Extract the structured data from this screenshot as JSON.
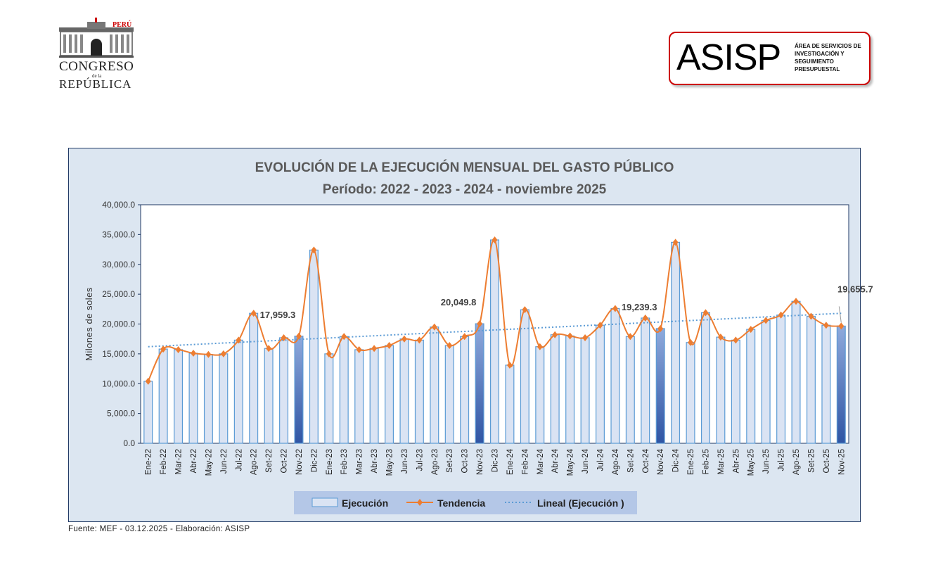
{
  "header": {
    "congreso": {
      "peru": "PERÚ",
      "name": "CONGRESO",
      "de_la": "de la",
      "republica": "REPÚBLICA"
    },
    "asisp": {
      "acronym": "ASISP",
      "description": "ÁREA DE SERVICIOS DE INVESTIGACIÓN Y SEGUIMIENTO PRESUPUESTAL"
    }
  },
  "source": "Fuente: MEF - 03.12.2025 - Elaboración: ASISP",
  "colors": {
    "bar_fill": "#dae3f3",
    "bar_stroke": "#5b9bd5",
    "highlight": "#4472c4",
    "line": "#ed7d31",
    "trend": "#5b9bd5",
    "panel": "#dce6f1"
  },
  "chart_data": {
    "type": "bar",
    "title": "EVOLUCIÓN DE LA EJECUCIÓN MENSUAL DEL GASTO PÚBLICO",
    "subtitle": "Período: 2022 - 2023 - 2024 - noviembre 2025",
    "ylabel": "Milones de soles",
    "xlabel": "",
    "ylim": [
      0,
      40000
    ],
    "yticks": [
      "0.0",
      "5,000.0",
      "10,000.0",
      "15,000.0",
      "20,000.0",
      "25,000.0",
      "30,000.0",
      "35,000.0",
      "40,000.0"
    ],
    "categories": [
      "Ene-22",
      "Feb-22",
      "Mar-22",
      "Abr-22",
      "May-22",
      "Jun-22",
      "Jul-22",
      "Ago-22",
      "Set-22",
      "Oct-22",
      "Nov-22",
      "Dic-22",
      "Ene-23",
      "Feb-23",
      "Mar-23",
      "Abr-23",
      "May-23",
      "Jun-23",
      "Jul-23",
      "Ago-23",
      "Set-23",
      "Oct-23",
      "Nov-23",
      "Dic-23",
      "Ene-24",
      "Feb-24",
      "Mar-24",
      "Abr-24",
      "May-24",
      "Jun-24",
      "Jul-24",
      "Ago-24",
      "Set-24",
      "Oct-24",
      "Nov-24",
      "Dic-24",
      "Ene-25",
      "Feb-25",
      "Mar-25",
      "Abr-25",
      "May-25",
      "Jun-25",
      "Jul-25",
      "Ago-25",
      "Set-25",
      "Oct-25",
      "Nov-25"
    ],
    "series": [
      {
        "name": "Ejecución",
        "type": "bar",
        "values": [
          10400,
          15800,
          15700,
          15100,
          14900,
          15000,
          17300,
          21800,
          15900,
          17700,
          17959.3,
          32400,
          15000,
          17900,
          15700,
          15900,
          16400,
          17500,
          17300,
          19500,
          16400,
          17900,
          20049.8,
          34100,
          13100,
          22400,
          16200,
          18200,
          18000,
          17700,
          19800,
          22600,
          17900,
          21000,
          19239.3,
          33700,
          16900,
          21900,
          17800,
          17300,
          19100,
          20600,
          21500,
          23800,
          21300,
          19800,
          19655.7
        ]
      },
      {
        "name": "Tendencia",
        "type": "line",
        "values": "same as Ejecución"
      },
      {
        "name": "Lineal (Ejecución )",
        "type": "linear-trend",
        "start": 16200,
        "end": 21800
      }
    ],
    "highlighted": [
      "Nov-22",
      "Nov-23",
      "Nov-24",
      "Nov-25"
    ],
    "data_labels": [
      {
        "category": "Nov-22",
        "text": "17,959.3"
      },
      {
        "category": "Nov-23",
        "text": "20,049.8"
      },
      {
        "category": "Nov-24",
        "text": "19,239.3"
      },
      {
        "category": "Nov-25",
        "text": "19,655.7"
      }
    ],
    "legend": {
      "position": "bottom",
      "items": [
        "Ejecución",
        "Tendencia",
        "Lineal (Ejecución )"
      ]
    },
    "grid": false
  }
}
